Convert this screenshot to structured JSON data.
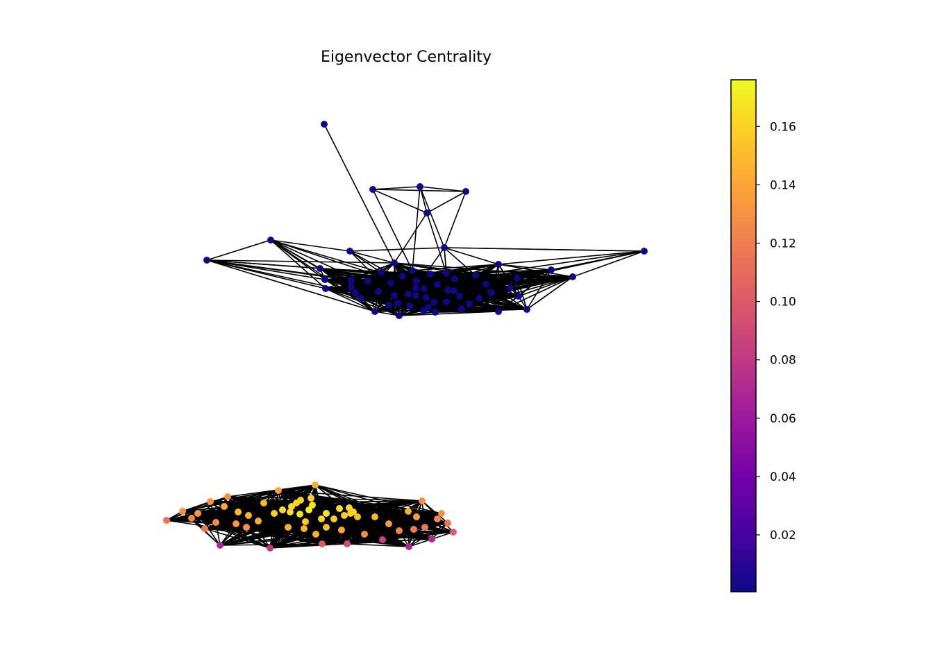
{
  "figure": {
    "title": "Eigenvector Centrality"
  },
  "colorbar": {
    "colormap": "plasma",
    "min": 0.0005,
    "max": 0.176,
    "ticks": [
      {
        "value": 0.02,
        "label": "0.02"
      },
      {
        "value": 0.04,
        "label": "0.04"
      },
      {
        "value": 0.06,
        "label": "0.06"
      },
      {
        "value": 0.08,
        "label": "0.08"
      },
      {
        "value": 0.1,
        "label": "0.10"
      },
      {
        "value": 0.12,
        "label": "0.12"
      },
      {
        "value": 0.14,
        "label": "0.14"
      },
      {
        "value": 0.16,
        "label": "0.16"
      }
    ],
    "stops": [
      "#0d0887",
      "#46039f",
      "#7201a8",
      "#9c179e",
      "#bd3786",
      "#d8576b",
      "#ed7953",
      "#fb9f3a",
      "#fdca26",
      "#f0f921"
    ]
  },
  "graph": {
    "edge_color": "#000000",
    "node_size": "small",
    "components": [
      {
        "name": "upper-component",
        "centrality_range": [
          0.0005,
          0.003
        ],
        "node_count": 62
      },
      {
        "name": "lower-component",
        "centrality_range": [
          0.06,
          0.176
        ],
        "node_count": 62
      }
    ]
  }
}
